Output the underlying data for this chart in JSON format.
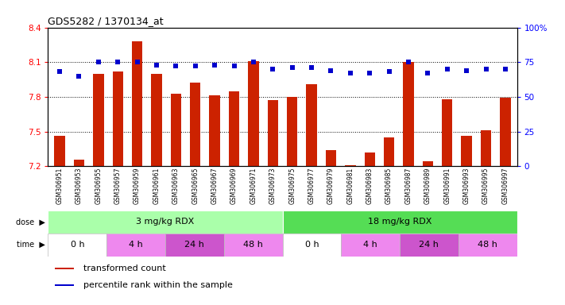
{
  "title": "GDS5282 / 1370134_at",
  "samples": [
    "GSM306951",
    "GSM306953",
    "GSM306955",
    "GSM306957",
    "GSM306959",
    "GSM306961",
    "GSM306963",
    "GSM306965",
    "GSM306967",
    "GSM306969",
    "GSM306971",
    "GSM306973",
    "GSM306975",
    "GSM306977",
    "GSM306979",
    "GSM306981",
    "GSM306983",
    "GSM306985",
    "GSM306987",
    "GSM306989",
    "GSM306991",
    "GSM306993",
    "GSM306995",
    "GSM306997"
  ],
  "transformed_count": [
    7.46,
    7.26,
    8.0,
    8.02,
    8.28,
    8.0,
    7.83,
    7.92,
    7.81,
    7.85,
    8.11,
    7.77,
    7.8,
    7.91,
    7.34,
    7.21,
    7.32,
    7.45,
    8.1,
    7.24,
    7.78,
    7.46,
    7.51,
    7.79
  ],
  "percentile_rank": [
    68,
    65,
    75,
    75,
    75,
    73,
    72,
    72,
    73,
    72,
    75,
    70,
    71,
    71,
    69,
    67,
    67,
    68,
    75,
    67,
    70,
    69,
    70,
    70
  ],
  "ylim_left": [
    7.2,
    8.4
  ],
  "ylim_right": [
    0,
    100
  ],
  "bar_color": "#cc2200",
  "dot_color": "#0000cc",
  "bar_width": 0.55,
  "yticks_left": [
    7.2,
    7.5,
    7.8,
    8.1,
    8.4
  ],
  "yticks_right": [
    0,
    25,
    50,
    75,
    100
  ],
  "grid_lines": [
    7.5,
    7.8,
    8.1
  ],
  "dose_groups": [
    {
      "label": "3 mg/kg RDX",
      "start": 0,
      "end": 12,
      "color": "#aaffaa"
    },
    {
      "label": "18 mg/kg RDX",
      "start": 12,
      "end": 24,
      "color": "#55dd55"
    }
  ],
  "time_groups": [
    {
      "label": "0 h",
      "start": 0,
      "end": 3,
      "color": "#ffffff"
    },
    {
      "label": "4 h",
      "start": 3,
      "end": 6,
      "color": "#ee88ee"
    },
    {
      "label": "24 h",
      "start": 6,
      "end": 9,
      "color": "#cc55cc"
    },
    {
      "label": "48 h",
      "start": 9,
      "end": 12,
      "color": "#ee88ee"
    },
    {
      "label": "0 h",
      "start": 12,
      "end": 15,
      "color": "#ffffff"
    },
    {
      "label": "4 h",
      "start": 15,
      "end": 18,
      "color": "#ee88ee"
    },
    {
      "label": "24 h",
      "start": 18,
      "end": 21,
      "color": "#cc55cc"
    },
    {
      "label": "48 h",
      "start": 21,
      "end": 24,
      "color": "#ee88ee"
    }
  ],
  "legend_items": [
    {
      "label": "transformed count",
      "color": "#cc2200"
    },
    {
      "label": "percentile rank within the sample",
      "color": "#0000cc"
    }
  ],
  "bg_color": "#ffffff",
  "plot_bg_color": "#ffffff",
  "xaxis_bg_color": "#dddddd"
}
